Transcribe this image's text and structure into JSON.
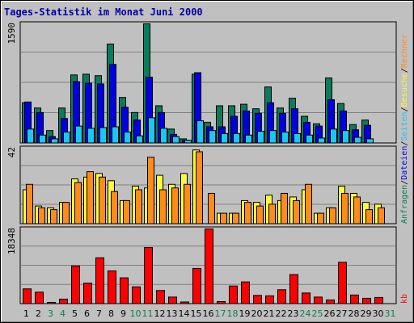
{
  "title": "Tages-Statistik im Monat Juni 2000",
  "colors": {
    "background": "#c0c0c0",
    "frame": "#000000",
    "title": "#0000aa",
    "grid": "#7f7f7f",
    "anfragen": "#0c7b5b",
    "dateien": "#0000e0",
    "seiten": "#19c8f5",
    "besuche": "#fbfb3c",
    "rechner": "#ff8c1a",
    "kb": "#ff0000",
    "weekday": "#000000",
    "weekend": "#107c4a"
  },
  "chart_data": [
    {
      "type": "bar",
      "panel": "top",
      "ymax_label": "1590",
      "ylim": [
        0,
        1590
      ],
      "categories": [
        "1",
        "2",
        "3",
        "4",
        "5",
        "6",
        "7",
        "8",
        "9",
        "10",
        "11",
        "12",
        "13",
        "14",
        "15",
        "16",
        "17",
        "18",
        "19",
        "20",
        "21",
        "22",
        "23",
        "24",
        "25",
        "26",
        "27",
        "28",
        "29",
        "30",
        "31"
      ],
      "weekend": [
        false,
        false,
        true,
        true,
        false,
        false,
        false,
        false,
        false,
        true,
        true,
        false,
        false,
        false,
        false,
        false,
        true,
        true,
        false,
        false,
        false,
        false,
        false,
        true,
        true,
        false,
        false,
        false,
        false,
        false,
        true
      ],
      "series": [
        {
          "name": "Anfragen",
          "color": "#0c7b5b",
          "values": [
            540,
            470,
            170,
            470,
            910,
            920,
            900,
            1320,
            610,
            410,
            1590,
            500,
            190,
            60,
            920,
            280,
            500,
            500,
            520,
            460,
            750,
            470,
            600,
            360,
            260,
            870,
            530,
            250,
            310,
            0,
            0
          ]
        },
        {
          "name": "Dateien",
          "color": "#0000e0",
          "values": [
            550,
            410,
            90,
            330,
            820,
            800,
            790,
            1050,
            480,
            310,
            880,
            410,
            120,
            40,
            940,
            220,
            220,
            360,
            430,
            400,
            540,
            400,
            460,
            280,
            230,
            580,
            430,
            180,
            240,
            0,
            0
          ]
        },
        {
          "name": "Seiten",
          "color": "#19c8f5",
          "values": [
            190,
            110,
            60,
            150,
            230,
            200,
            210,
            220,
            150,
            100,
            340,
            200,
            90,
            40,
            300,
            170,
            130,
            130,
            110,
            160,
            170,
            150,
            130,
            110,
            70,
            190,
            170,
            80,
            60,
            0,
            0
          ]
        }
      ]
    },
    {
      "type": "bar",
      "panel": "middle",
      "ymax_label": "42",
      "ylim": [
        0,
        42
      ],
      "categories": [
        "1",
        "2",
        "3",
        "4",
        "5",
        "6",
        "7",
        "8",
        "9",
        "10",
        "11",
        "12",
        "13",
        "14",
        "15",
        "16",
        "17",
        "18",
        "19",
        "20",
        "21",
        "22",
        "23",
        "24",
        "25",
        "26",
        "27",
        "28",
        "29",
        "30",
        "31"
      ],
      "series": [
        {
          "name": "Besuche",
          "color": "#fbfb3c",
          "values": [
            19,
            10,
            9,
            12,
            25,
            26,
            28,
            24,
            13,
            21,
            20,
            27,
            22,
            28,
            41,
            0,
            6,
            6,
            13,
            12,
            16,
            13,
            15,
            19,
            6,
            9,
            21,
            17,
            12,
            11,
            0
          ]
        },
        {
          "name": "Rechner",
          "color": "#ff8c1a",
          "values": [
            22,
            9,
            8,
            12,
            23,
            29,
            26,
            18,
            13,
            19,
            37,
            19,
            20,
            22,
            40,
            17,
            6,
            6,
            12,
            10,
            11,
            17,
            13,
            22,
            6,
            9,
            17,
            15,
            8,
            9,
            0
          ]
        }
      ]
    },
    {
      "type": "bar",
      "panel": "bottom",
      "ymax_label": "18348",
      "ylim": [
        0,
        18348
      ],
      "categories": [
        "1",
        "2",
        "3",
        "4",
        "5",
        "6",
        "7",
        "8",
        "9",
        "10",
        "11",
        "12",
        "13",
        "14",
        "15",
        "16",
        "17",
        "18",
        "19",
        "20",
        "21",
        "22",
        "23",
        "24",
        "25",
        "26",
        "27",
        "28",
        "29",
        "30",
        "31"
      ],
      "series": [
        {
          "name": "kb",
          "color": "#ff0000",
          "values": [
            3700,
            2900,
            400,
            1200,
            9300,
            5100,
            11300,
            8100,
            6400,
            4200,
            13800,
            3300,
            1700,
            500,
            8700,
            18348,
            600,
            4400,
            5400,
            2100,
            2000,
            3500,
            7200,
            2700,
            1700,
            1000,
            10200,
            2200,
            1400,
            1600,
            0
          ]
        }
      ]
    }
  ],
  "legend": [
    {
      "text": "Anfragen",
      "color": "#0c7b5b"
    },
    {
      "text": "/",
      "color": "#000000"
    },
    {
      "text": "Dateien",
      "color": "#0000e0"
    },
    {
      "text": "/",
      "color": "#000000"
    },
    {
      "text": "Seiten",
      "color": "#19c8f5"
    },
    {
      "text": "/",
      "color": "#000000"
    },
    {
      "text": "Besuche",
      "color": "#fbfb3c"
    },
    {
      "text": "/",
      "color": "#000000"
    },
    {
      "text": "Rechner",
      "color": "#ff8c1a"
    }
  ],
  "kb_label": "kb"
}
